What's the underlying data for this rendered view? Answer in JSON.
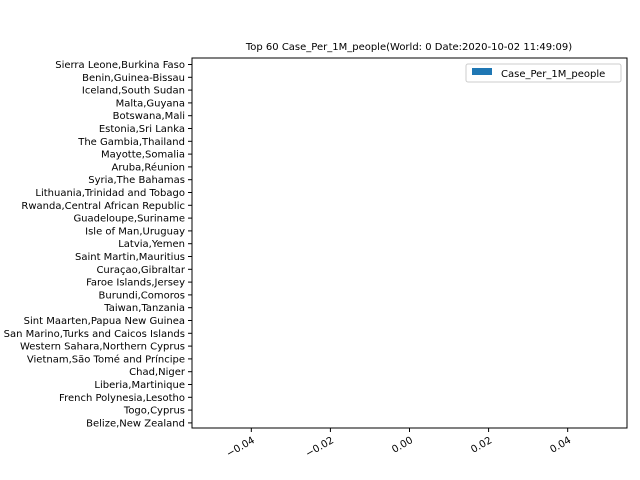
{
  "chart_data": {
    "type": "bar",
    "orientation": "horizontal",
    "title": "Top 60 Case_Per_1M_people(World: 0 Date:2020-10-02 11:49:09)",
    "xlabel": "",
    "ylabel": "",
    "categories": [
      "Sierra Leone,Burkina Faso",
      "Benin,Guinea-Bissau",
      "Iceland,South Sudan",
      "Malta,Guyana",
      "Botswana,Mali",
      "Estonia,Sri Lanka",
      "The Gambia,Thailand",
      "Mayotte,Somalia",
      "Aruba,Réunion",
      "Syria,The Bahamas",
      "Lithuania,Trinidad and Tobago",
      "Rwanda,Central African Republic",
      "Guadeloupe,Suriname",
      "Isle of Man,Uruguay",
      "Latvia,Yemen",
      "Saint Martin,Mauritius",
      "Curaçao,Gibraltar",
      "Faroe Islands,Jersey",
      "Burundi,Comoros",
      "Taiwan,Tanzania",
      "Sint Maarten,Papua New Guinea",
      "San Marino,Turks and Caicos Islands",
      "Western Sahara,Northern Cyprus",
      "Vietnam,São Tomé and Príncipe",
      "Chad,Niger",
      "Liberia,Martinique",
      "French Polynesia,Lesotho",
      "Togo,Cyprus",
      "Belize,New Zealand"
    ],
    "series": [
      {
        "name": "Case_Per_1M_people",
        "color": "#1f77b4",
        "values": [
          0,
          0,
          0,
          0,
          0,
          0,
          0,
          0,
          0,
          0,
          0,
          0,
          0,
          0,
          0,
          0,
          0,
          0,
          0,
          0,
          0,
          0,
          0,
          0,
          0,
          0,
          0,
          0,
          0
        ]
      }
    ],
    "xlim": [
      -0.055,
      0.055
    ],
    "xticks": [
      "−0.04",
      "−0.02",
      "0.00",
      "0.02",
      "0.04"
    ],
    "xtick_values": [
      -0.04,
      -0.02,
      0.0,
      0.02,
      0.04
    ],
    "grid": false,
    "legend_position": "upper right"
  }
}
